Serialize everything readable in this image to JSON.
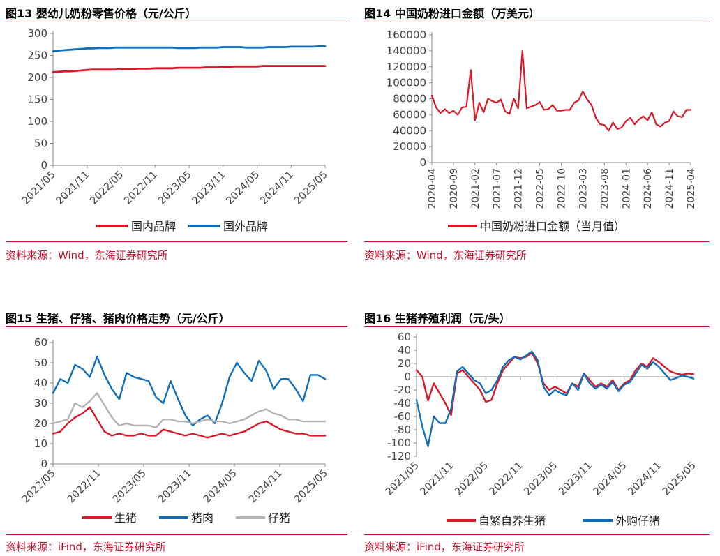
{
  "colors": {
    "red": "#d71928",
    "blue": "#0f6fba",
    "gray": "#b3b3b3",
    "rule": "#c8102e"
  },
  "panels": [
    {
      "title": "图13  婴幼儿奶粉零售价格（元/公斤）",
      "source": "资料来源：Wind，东海证券研究所",
      "chart_data": {
        "type": "line",
        "x_ticks": [
          "2021/05",
          "2021/11",
          "2022/05",
          "2022/11",
          "2023/05",
          "2023/11",
          "2024/05",
          "2024/11",
          "2025/05"
        ],
        "ylim": [
          0,
          300
        ],
        "y_ticks": [
          0,
          50,
          100,
          150,
          200,
          250,
          300
        ],
        "series": [
          {
            "name": "国内品牌",
            "color": "#d71928",
            "x_range": [
              0,
              48
            ],
            "values": [
              212,
              213,
              214,
              214,
              215,
              216,
              217,
              218,
              218,
              218,
              218,
              218,
              219,
              219,
              219,
              220,
              220,
              220,
              221,
              221,
              221,
              221,
              222,
              222,
              222,
              222,
              222,
              223,
              223,
              223,
              224,
              224,
              225,
              225,
              225,
              225,
              225,
              226,
              226,
              226,
              226,
              226,
              226,
              226,
              226,
              226,
              226,
              226,
              226
            ]
          },
          {
            "name": "国外品牌",
            "color": "#0f6fba",
            "x_range": [
              0,
              48
            ],
            "values": [
              259,
              261,
              262,
              263,
              264,
              265,
              266,
              266,
              267,
              267,
              267,
              268,
              268,
              268,
              268,
              268,
              268,
              268,
              268,
              268,
              268,
              268,
              267,
              267,
              267,
              267,
              268,
              268,
              268,
              268,
              269,
              269,
              269,
              269,
              268,
              268,
              268,
              268,
              269,
              269,
              269,
              269,
              270,
              270,
              270,
              270,
              270,
              271,
              271
            ]
          }
        ]
      }
    },
    {
      "title": "图14  中国奶粉进口金额（万美元）",
      "source": "资料来源：Wind，东海证券研究所",
      "chart_data": {
        "type": "line",
        "x_ticks": [
          "2020-04",
          "2020-09",
          "2021-02",
          "2021-07",
          "2021-12",
          "2022-05",
          "2022-10",
          "2023-03",
          "2023-08",
          "2024-01",
          "2024-06",
          "2024-11",
          "2025-04"
        ],
        "ylim": [
          0,
          160000
        ],
        "y_ticks": [
          0,
          20000,
          40000,
          60000,
          80000,
          100000,
          120000,
          140000,
          160000
        ],
        "series": [
          {
            "name": "中国奶粉进口金额（当月值）",
            "color": "#d71928",
            "x_range": [
              0,
              60
            ],
            "values": [
              84000,
              69000,
              62000,
              67000,
              62000,
              65000,
              60000,
              69000,
              70000,
              116000,
              53000,
              75000,
              63000,
              80000,
              77000,
              75000,
              79000,
              64000,
              61000,
              80000,
              68000,
              140000,
              68000,
              70000,
              72000,
              76000,
              66000,
              67000,
              72000,
              65000,
              65000,
              66000,
              66000,
              75000,
              78000,
              89000,
              79000,
              72000,
              56000,
              48000,
              47000,
              40000,
              50000,
              42000,
              44000,
              52000,
              56000,
              48000,
              54000,
              58000,
              53000,
              63000,
              48000,
              45000,
              50000,
              52000,
              64000,
              58000,
              57000,
              66000,
              66000
            ]
          }
        ]
      }
    },
    {
      "title": "图15  生猪、仔猪、猪肉价格走势（元/公斤）",
      "source": "资料来源：iFind，东海证券研究所",
      "chart_data": {
        "type": "line",
        "x_ticks": [
          "2022/05",
          "2022/11",
          "2023/05",
          "2023/11",
          "2024/05",
          "2024/11",
          "2025/05"
        ],
        "ylim": [
          0,
          60
        ],
        "y_ticks": [
          0,
          10,
          20,
          30,
          40,
          50,
          60
        ],
        "series": [
          {
            "name": "生猪",
            "color": "#d71928",
            "x_range": [
              0,
              37
            ],
            "values": [
              15,
              16,
              20,
              23,
              25,
              28,
              22,
              16,
              14,
              15,
              14,
              14,
              15,
              14,
              14,
              17,
              16,
              15,
              14,
              15,
              14,
              13,
              14,
              15,
              14,
              15,
              16,
              18,
              20,
              21,
              19,
              17,
              16,
              15,
              15,
              14,
              14,
              14
            ]
          },
          {
            "name": "猪肉",
            "color": "#0f6fba",
            "x_range": [
              0,
              37
            ],
            "values": [
              35,
              42,
              40,
              49,
              47,
              43,
              53,
              44,
              37,
              32,
              45,
              43,
              42,
              41,
              33,
              30,
              41,
              32,
              24,
              19,
              22,
              24,
              20,
              30,
              43,
              50,
              45,
              41,
              51,
              46,
              37,
              42,
              42,
              37,
              31,
              44,
              44,
              42
            ]
          },
          {
            "name": "仔猪",
            "color": "#b3b3b3",
            "x_range": [
              0,
              37
            ],
            "values": [
              20,
              21,
              22,
              30,
              28,
              31,
              35,
              29,
              23,
              19,
              20,
              19,
              19,
              19,
              18,
              22,
              22,
              21,
              21,
              20,
              21,
              22,
              21,
              21,
              20,
              21,
              22,
              24,
              26,
              27,
              25,
              24,
              22,
              22,
              21,
              21,
              21,
              21
            ]
          }
        ]
      }
    },
    {
      "title": "图16  生猪养殖利润（元/头）",
      "source": "资料来源：iFind，东海证券研究所",
      "chart_data": {
        "type": "line",
        "x_ticks": [
          "2021/05",
          "2021/11",
          "2022/05",
          "2022/11",
          "2023/05",
          "2023/11",
          "2024/05",
          "2024/11",
          "2025/05"
        ],
        "ylim": [
          -120,
          60
        ],
        "y_ticks": [
          -120,
          -100,
          -80,
          -60,
          -40,
          -20,
          0,
          20,
          40,
          60
        ],
        "series": [
          {
            "name": "自繁自养生猪",
            "color": "#d71928",
            "x_range": [
              0,
              48
            ],
            "values": [
              10,
              0,
              -36,
              -10,
              -25,
              -40,
              -58,
              5,
              10,
              0,
              -10,
              -20,
              -38,
              -35,
              -10,
              10,
              20,
              30,
              28,
              30,
              36,
              20,
              -10,
              -20,
              -15,
              -20,
              -25,
              -10,
              -15,
              5,
              -5,
              -15,
              -10,
              -15,
              -5,
              -20,
              -10,
              -5,
              10,
              20,
              15,
              28,
              22,
              15,
              8,
              5,
              3,
              5,
              4
            ]
          },
          {
            "name": "外购仔猪",
            "color": "#0f6fba",
            "x_range": [
              0,
              48
            ],
            "values": [
              -35,
              -75,
              -105,
              -60,
              -70,
              -70,
              -48,
              8,
              15,
              5,
              -5,
              -10,
              -25,
              -20,
              -5,
              15,
              25,
              30,
              26,
              32,
              38,
              25,
              -15,
              -28,
              -20,
              -25,
              -28,
              -10,
              -20,
              5,
              -10,
              -18,
              -12,
              -18,
              -8,
              -22,
              -12,
              -8,
              5,
              18,
              12,
              22,
              15,
              5,
              -5,
              -2,
              2,
              0,
              -3
            ]
          }
        ]
      }
    }
  ]
}
